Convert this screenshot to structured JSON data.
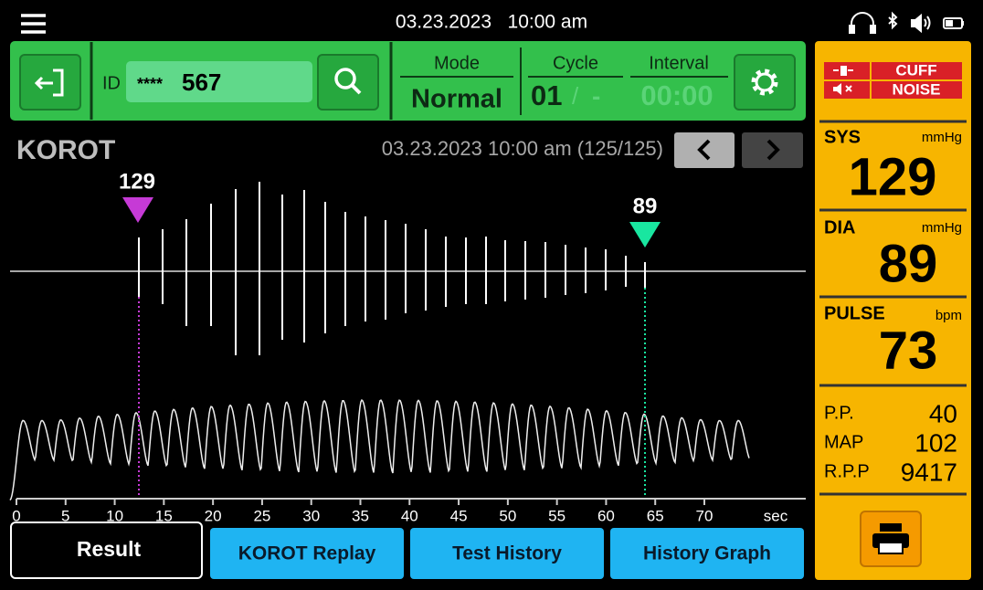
{
  "status_bar": {
    "datetime": "03.23.2023   10:00 am"
  },
  "toolbar": {
    "id_label": "ID",
    "id_mask": "****",
    "id_value": "567",
    "mode_label": "Mode",
    "mode_value": "Normal",
    "cycle_label": "Cycle",
    "cycle_value": "01",
    "cycle_separator": "/",
    "cycle_total": "-",
    "interval_label": "Interval",
    "interval_value": "00:00"
  },
  "korot": {
    "title": "KOROT",
    "record": "03.23.2023 10:00 am (125/125)",
    "sys_marker": 129,
    "dia_marker": 89,
    "x_ticks": [
      0,
      5,
      10,
      15,
      20,
      25,
      30,
      35,
      40,
      45,
      50,
      55,
      60,
      65,
      70
    ],
    "x_unit": "sec"
  },
  "alerts": [
    "CUFF",
    "NOISE"
  ],
  "vitals": {
    "sys": {
      "label": "SYS",
      "unit": "mmHg",
      "value": 129
    },
    "dia": {
      "label": "DIA",
      "unit": "mmHg",
      "value": 89
    },
    "pulse": {
      "label": "PULSE",
      "unit": "bpm",
      "value": 73
    }
  },
  "derived": [
    {
      "label": "P.P.",
      "value": 40
    },
    {
      "label": "MAP",
      "value": 102
    },
    {
      "label": "R.P.P",
      "value": 9417
    }
  ],
  "tabs": [
    "Result",
    "KOROT Replay",
    "Test History",
    "History Graph"
  ]
}
